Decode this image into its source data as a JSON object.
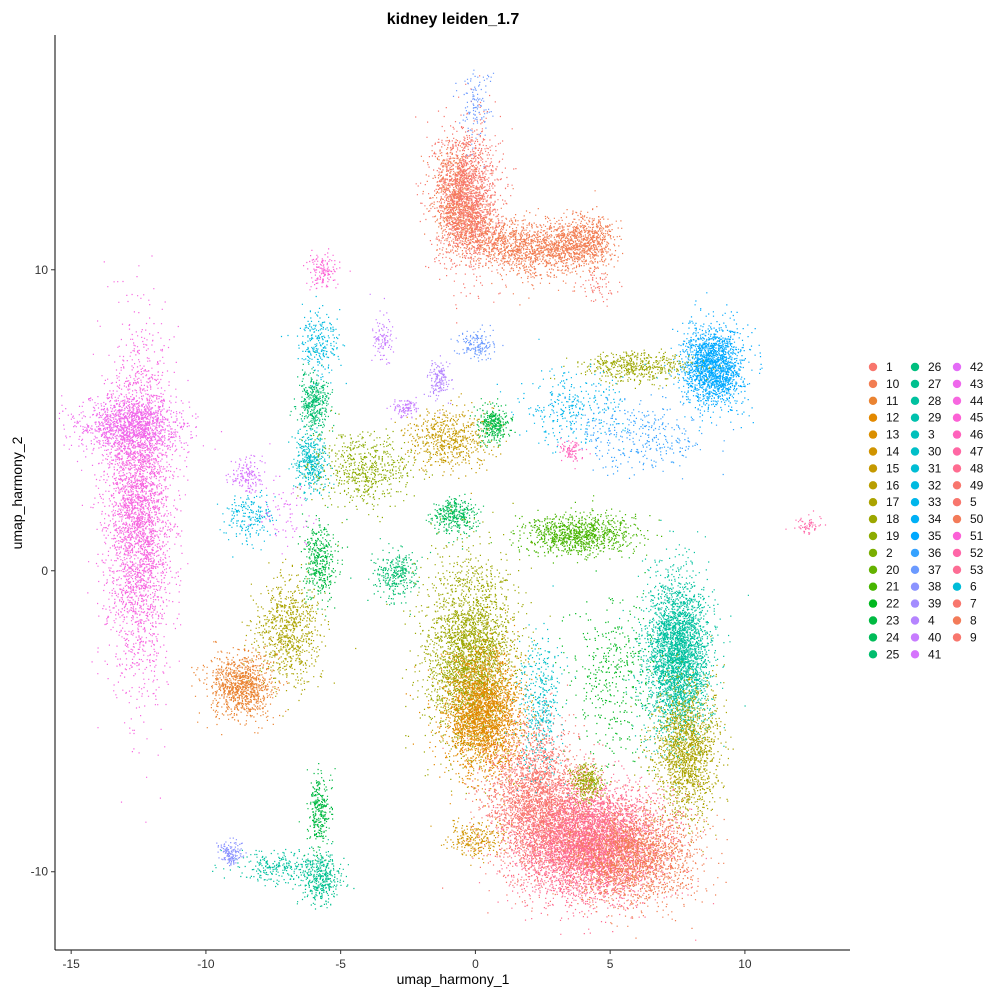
{
  "chart_data": {
    "type": "scatter",
    "title": "kidney leiden_1.7",
    "xlabel": "umap_harmony_1",
    "ylabel": "umap_harmony_2",
    "xlim": [
      -15.6,
      13.9
    ],
    "ylim": [
      -12.6,
      17.8
    ],
    "xticks": [
      "-15",
      "-10",
      "-5",
      "0",
      "5",
      "10"
    ],
    "yticks": [
      "-10",
      "0",
      "10"
    ],
    "grid": false,
    "legend_position": "right",
    "legend_entries": [
      {
        "label": "1",
        "color": "#F8766D"
      },
      {
        "label": "10",
        "color": "#F27D52"
      },
      {
        "label": "11",
        "color": "#EA8331"
      },
      {
        "label": "12",
        "color": "#E38900"
      },
      {
        "label": "13",
        "color": "#DA8F00"
      },
      {
        "label": "14",
        "color": "#D09400"
      },
      {
        "label": "15",
        "color": "#C59900"
      },
      {
        "label": "16",
        "color": "#B99E00"
      },
      {
        "label": "17",
        "color": "#ABA300"
      },
      {
        "label": "18",
        "color": "#9CA700"
      },
      {
        "label": "19",
        "color": "#8CAB00"
      },
      {
        "label": "2",
        "color": "#7AAE00"
      },
      {
        "label": "20",
        "color": "#64B200"
      },
      {
        "label": "21",
        "color": "#47B500"
      },
      {
        "label": "22",
        "color": "#00B81F"
      },
      {
        "label": "23",
        "color": "#00BA42"
      },
      {
        "label": "24",
        "color": "#00BC59"
      },
      {
        "label": "25",
        "color": "#00BD6D"
      },
      {
        "label": "26",
        "color": "#00BF7F"
      },
      {
        "label": "27",
        "color": "#00C08F"
      },
      {
        "label": "28",
        "color": "#00C19F"
      },
      {
        "label": "29",
        "color": "#00C1AD"
      },
      {
        "label": "3",
        "color": "#00C0BB"
      },
      {
        "label": "30",
        "color": "#00BFC8"
      },
      {
        "label": "31",
        "color": "#00BDD4"
      },
      {
        "label": "32",
        "color": "#00BAE0"
      },
      {
        "label": "33",
        "color": "#00B6EB"
      },
      {
        "label": "34",
        "color": "#00B0F6"
      },
      {
        "label": "35",
        "color": "#00A9FF"
      },
      {
        "label": "36",
        "color": "#35A2FF"
      },
      {
        "label": "37",
        "color": "#6B9AFF"
      },
      {
        "label": "38",
        "color": "#8B93FF"
      },
      {
        "label": "39",
        "color": "#A38CFF"
      },
      {
        "label": "4",
        "color": "#B584FF"
      },
      {
        "label": "40",
        "color": "#C77CFF"
      },
      {
        "label": "41",
        "color": "#D673FD"
      },
      {
        "label": "42",
        "color": "#E46BF7"
      },
      {
        "label": "43",
        "color": "#EF67EC"
      },
      {
        "label": "44",
        "color": "#F767E0"
      },
      {
        "label": "45",
        "color": "#FC61D5"
      },
      {
        "label": "46",
        "color": "#FF62BC"
      },
      {
        "label": "47",
        "color": "#FF67A4"
      },
      {
        "label": "48",
        "color": "#FF6C91"
      },
      {
        "label": "49",
        "color": "#F8766D"
      },
      {
        "label": "5",
        "color": "#F8766D"
      },
      {
        "label": "50",
        "color": "#F37B59"
      },
      {
        "label": "51",
        "color": "#FB61D7"
      },
      {
        "label": "52",
        "color": "#FF66A8"
      },
      {
        "label": "53",
        "color": "#FD6D95"
      },
      {
        "label": "6",
        "color": "#00BCD8"
      },
      {
        "label": "7",
        "color": "#F8766D"
      },
      {
        "label": "8",
        "color": "#F37B59"
      },
      {
        "label": "9",
        "color": "#F8766D"
      }
    ],
    "clusters": [
      {
        "color": "#F27D52",
        "n": 3200,
        "cx": 1.6,
        "cy": 11.6,
        "sx": 1.1,
        "sy": 1.1,
        "shape": "arc",
        "arc": [
          [
            -0.8,
            13.6
          ],
          [
            -0.6,
            11.5
          ],
          [
            1.5,
            10.7
          ],
          [
            3.5,
            10.8
          ],
          [
            4.6,
            11.0
          ]
        ]
      },
      {
        "color": "#F8766D",
        "n": 1500,
        "cx": -0.3,
        "cy": 12.5,
        "sx": 0.6,
        "sy": 1.2
      },
      {
        "color": "#6B9AFF",
        "n": 120,
        "cx": 0.0,
        "cy": 15.5,
        "sx": 0.3,
        "sy": 0.6
      },
      {
        "color": "#00A9FF",
        "n": 1800,
        "cx": 8.8,
        "cy": 6.8,
        "sx": 0.55,
        "sy": 0.65
      },
      {
        "color": "#9CA700",
        "n": 500,
        "cx": 6.0,
        "cy": 6.8,
        "sx": 1.0,
        "sy": 0.25
      },
      {
        "color": "#00B6EB",
        "n": 300,
        "cx": 3.5,
        "cy": 5.4,
        "sx": 1.0,
        "sy": 0.6
      },
      {
        "color": "#F767E0",
        "n": 3500,
        "cx": -12.5,
        "cy": 2.0,
        "sx": 0.6,
        "sy": 2.6
      },
      {
        "color": "#EF67EC",
        "n": 1200,
        "cx": -12.8,
        "cy": 4.8,
        "sx": 1.0,
        "sy": 0.5
      },
      {
        "color": "#00BD6D",
        "n": 400,
        "cx": -6.0,
        "cy": 5.6,
        "sx": 0.3,
        "sy": 0.5
      },
      {
        "color": "#00BFC8",
        "n": 400,
        "cx": -6.1,
        "cy": 3.6,
        "sx": 0.3,
        "sy": 0.5
      },
      {
        "color": "#00BAE0",
        "n": 250,
        "cx": -5.8,
        "cy": 7.6,
        "sx": 0.4,
        "sy": 0.5
      },
      {
        "color": "#8CAB00",
        "n": 600,
        "cx": -4.2,
        "cy": 3.4,
        "sx": 0.9,
        "sy": 0.6
      },
      {
        "color": "#C59900",
        "n": 600,
        "cx": -1.0,
        "cy": 4.4,
        "sx": 0.8,
        "sy": 0.5
      },
      {
        "color": "#00BA42",
        "n": 300,
        "cx": 0.7,
        "cy": 4.9,
        "sx": 0.3,
        "sy": 0.3
      },
      {
        "color": "#00BA42",
        "n": 400,
        "cx": -5.8,
        "cy": 0.3,
        "sx": 0.3,
        "sy": 0.6
      },
      {
        "color": "#ABA300",
        "n": 800,
        "cx": -7.0,
        "cy": -2.0,
        "sx": 0.6,
        "sy": 0.9
      },
      {
        "color": "#EA8331",
        "n": 1000,
        "cx": -8.7,
        "cy": -3.8,
        "sx": 0.6,
        "sy": 0.55
      },
      {
        "color": "#00BC59",
        "n": 350,
        "cx": -0.8,
        "cy": 1.8,
        "sx": 0.4,
        "sy": 0.3
      },
      {
        "color": "#00BD6D",
        "n": 300,
        "cx": -3.0,
        "cy": -0.1,
        "sx": 0.4,
        "sy": 0.4
      },
      {
        "color": "#47B500",
        "n": 1000,
        "cx": 3.8,
        "cy": 1.2,
        "sx": 1.0,
        "sy": 0.35
      },
      {
        "color": "#9CA700",
        "n": 3000,
        "cx": -0.2,
        "cy": -2.8,
        "sx": 0.8,
        "sy": 1.5
      },
      {
        "color": "#E38900",
        "n": 2500,
        "cx": 0.3,
        "cy": -4.8,
        "sx": 0.7,
        "sy": 1.0
      },
      {
        "color": "#00C19F",
        "n": 3200,
        "cx": 7.5,
        "cy": -2.8,
        "sx": 0.6,
        "sy": 1.3
      },
      {
        "color": "#ABA300",
        "n": 1600,
        "cx": 7.8,
        "cy": -6.0,
        "sx": 0.6,
        "sy": 1.1
      },
      {
        "color": "#FF6C91",
        "n": 5500,
        "cx": 4.2,
        "cy": -9.0,
        "sx": 1.3,
        "sy": 0.9
      },
      {
        "color": "#F8766D",
        "n": 2500,
        "cx": 2.2,
        "cy": -7.6,
        "sx": 0.9,
        "sy": 1.2
      },
      {
        "color": "#F27D52",
        "n": 2000,
        "cx": 5.8,
        "cy": -9.5,
        "sx": 1.2,
        "sy": 0.8
      },
      {
        "color": "#00BFC8",
        "n": 400,
        "cx": 2.4,
        "cy": -4.5,
        "sx": 0.4,
        "sy": 1.2
      },
      {
        "color": "#00B81F",
        "n": 400,
        "cx": 5.0,
        "cy": -3.5,
        "sx": 0.8,
        "sy": 1.3
      },
      {
        "color": "#9CA700",
        "n": 300,
        "cx": 4.1,
        "cy": -7.0,
        "sx": 0.3,
        "sy": 0.3
      },
      {
        "color": "#D09400",
        "n": 250,
        "cx": 0.0,
        "cy": -8.9,
        "sx": 0.5,
        "sy": 0.3
      },
      {
        "color": "#00BA42",
        "n": 300,
        "cx": -5.8,
        "cy": -8.0,
        "sx": 0.2,
        "sy": 0.6
      },
      {
        "color": "#00C08F",
        "n": 400,
        "cx": -5.7,
        "cy": -10.2,
        "sx": 0.4,
        "sy": 0.4
      },
      {
        "color": "#00C19F",
        "n": 250,
        "cx": -7.4,
        "cy": -9.8,
        "sx": 0.8,
        "sy": 0.25
      },
      {
        "color": "#8B93FF",
        "n": 150,
        "cx": -9.1,
        "cy": -9.4,
        "sx": 0.2,
        "sy": 0.2
      },
      {
        "color": "#FC61D5",
        "n": 140,
        "cx": -5.7,
        "cy": 10.0,
        "sx": 0.3,
        "sy": 0.3
      },
      {
        "color": "#C77CFF",
        "n": 100,
        "cx": -3.5,
        "cy": 7.7,
        "sx": 0.2,
        "sy": 0.4
      },
      {
        "color": "#B584FF",
        "n": 150,
        "cx": -1.4,
        "cy": 6.4,
        "sx": 0.2,
        "sy": 0.3
      },
      {
        "color": "#C77CFF",
        "n": 100,
        "cx": -2.6,
        "cy": 5.4,
        "sx": 0.25,
        "sy": 0.15
      },
      {
        "color": "#6B9AFF",
        "n": 150,
        "cx": 0.0,
        "cy": 7.5,
        "sx": 0.35,
        "sy": 0.25
      },
      {
        "color": "#D673FD",
        "n": 150,
        "cx": -8.5,
        "cy": 3.2,
        "sx": 0.3,
        "sy": 0.3
      },
      {
        "color": "#00BAE0",
        "n": 200,
        "cx": -8.4,
        "cy": 1.8,
        "sx": 0.5,
        "sy": 0.4
      },
      {
        "color": "#E46BF7",
        "n": 80,
        "cx": -7.0,
        "cy": 2.0,
        "sx": 0.5,
        "sy": 0.8
      },
      {
        "color": "#FF62BC",
        "n": 80,
        "cx": 3.5,
        "cy": 4.0,
        "sx": 0.2,
        "sy": 0.2
      },
      {
        "color": "#FF66A8",
        "n": 60,
        "cx": 12.3,
        "cy": 1.5,
        "sx": 0.25,
        "sy": 0.15
      },
      {
        "color": "#35A2FF",
        "n": 350,
        "cx": 6.0,
        "cy": 4.5,
        "sx": 1.2,
        "sy": 0.6
      },
      {
        "color": "#F8766D",
        "n": 60,
        "cx": 4.5,
        "cy": 9.5,
        "sx": 0.4,
        "sy": 0.3
      }
    ]
  }
}
